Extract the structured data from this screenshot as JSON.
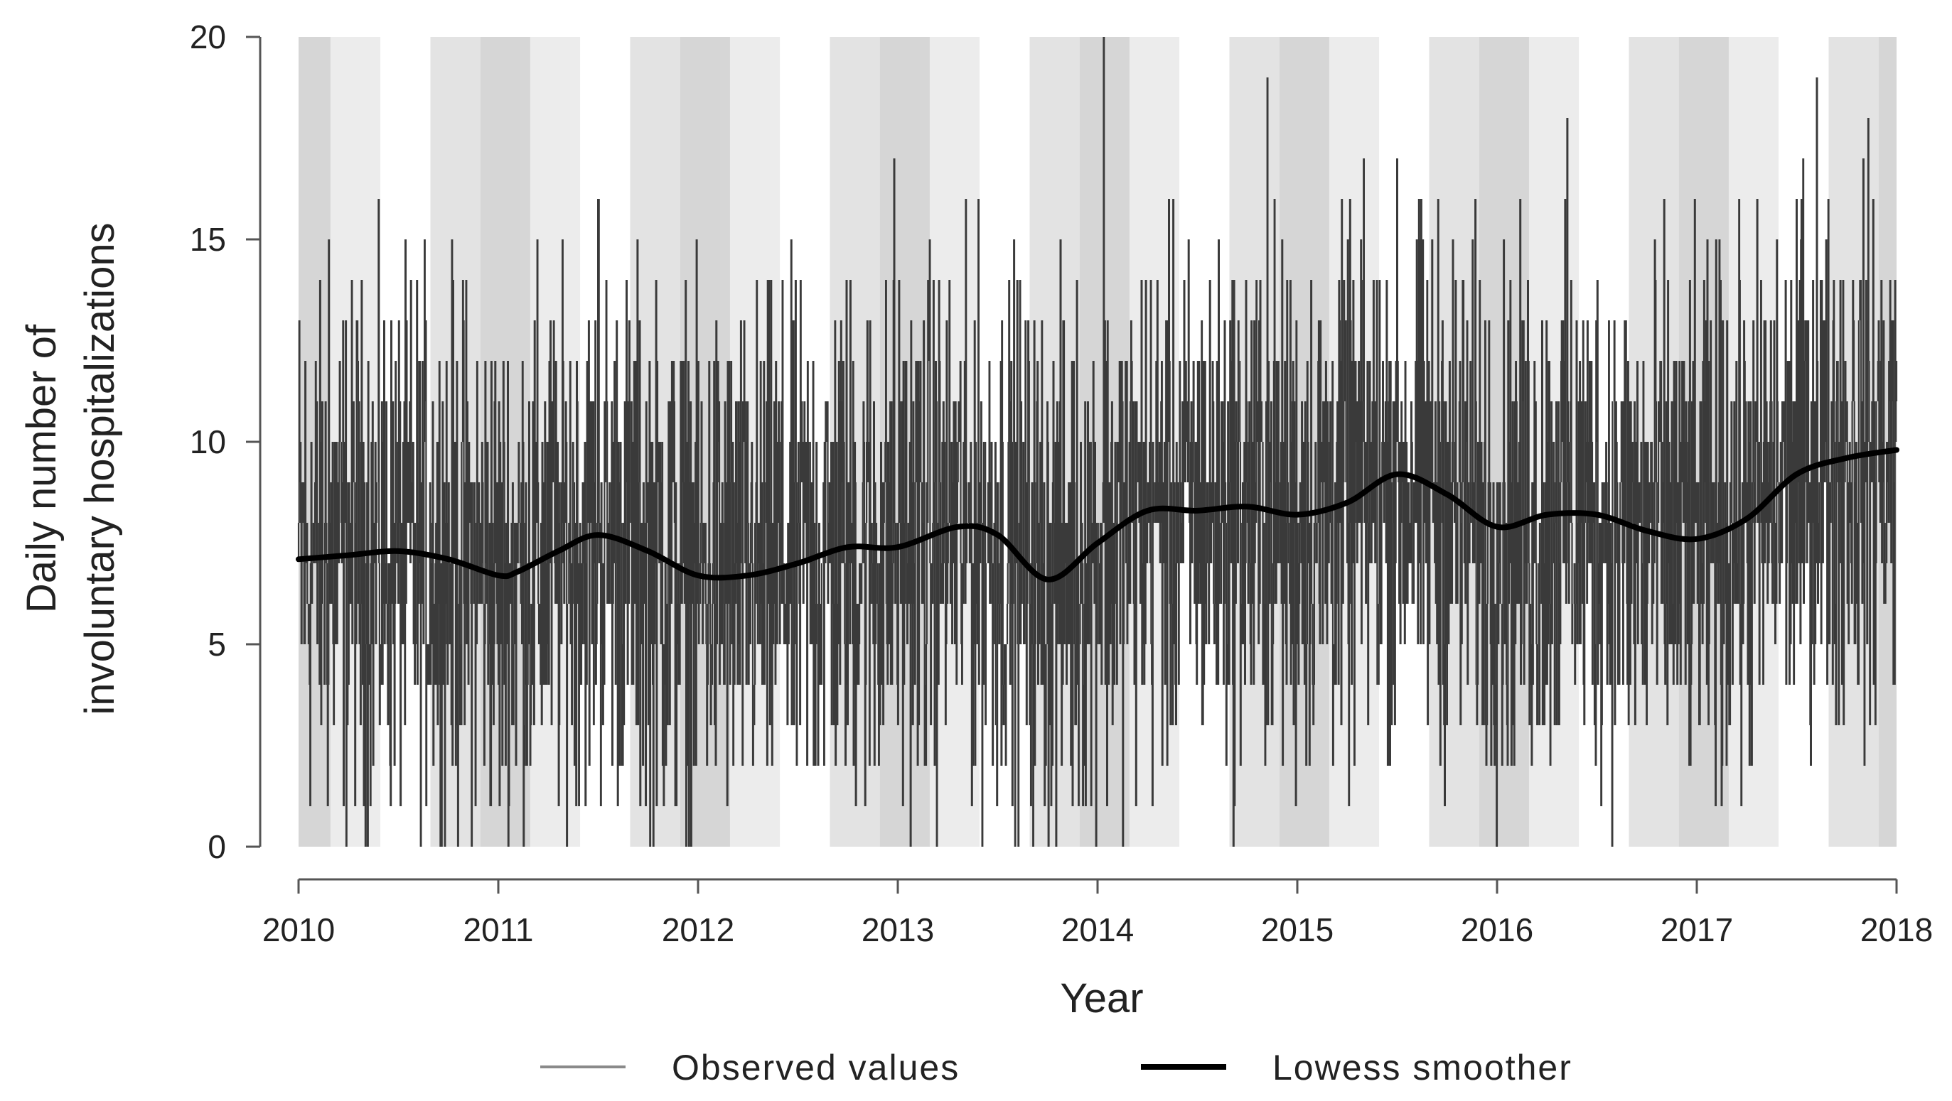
{
  "chart_data": {
    "type": "line",
    "title": "",
    "xlabel": "Year",
    "ylabel_lines": [
      "Daily number of",
      "involuntary hospitalizations"
    ],
    "xlim": [
      2010,
      2018
    ],
    "ylim": [
      0,
      20
    ],
    "x_ticks": [
      2010,
      2011,
      2012,
      2013,
      2014,
      2015,
      2016,
      2017,
      2018
    ],
    "y_ticks": [
      0,
      5,
      10,
      15,
      20
    ],
    "grid": false,
    "legend_position": "bottom",
    "season_shading": {
      "description": "Alternating seasonal background bands each year",
      "bands": [
        {
          "start": 0.0,
          "end": 0.16,
          "shade": "#d6d6d6"
        },
        {
          "start": 0.16,
          "end": 0.41,
          "shade": "#ececec"
        },
        {
          "start": 0.41,
          "end": 0.66,
          "shade": "#ffffff"
        },
        {
          "start": 0.66,
          "end": 0.91,
          "shade": "#e3e3e3"
        },
        {
          "start": 0.91,
          "end": 1.0,
          "shade": "#d6d6d6"
        }
      ]
    },
    "series": [
      {
        "name": "Observed values",
        "style": "thin gray vertical line segments (daily counts)",
        "approx_daily_range": [
          0,
          20
        ],
        "notable_peaks": [
          {
            "x": 2010.15,
            "y": 15
          },
          {
            "x": 2011.5,
            "y": 16
          },
          {
            "x": 2012.98,
            "y": 17
          },
          {
            "x": 2014.03,
            "y": 20
          },
          {
            "x": 2014.85,
            "y": 19
          },
          {
            "x": 2016.35,
            "y": 18
          },
          {
            "x": 2017.6,
            "y": 19
          }
        ]
      },
      {
        "name": "Lowess smoother",
        "style": "thick black line",
        "x": [
          2010.0,
          2010.25,
          2010.5,
          2010.75,
          2011.0,
          2011.1,
          2011.3,
          2011.5,
          2011.75,
          2012.0,
          2012.25,
          2012.5,
          2012.75,
          2013.0,
          2013.3,
          2013.5,
          2013.75,
          2014.0,
          2014.25,
          2014.5,
          2014.75,
          2015.0,
          2015.25,
          2015.5,
          2015.75,
          2016.0,
          2016.25,
          2016.5,
          2016.75,
          2017.0,
          2017.25,
          2017.5,
          2017.75,
          2018.0
        ],
        "y": [
          7.1,
          7.2,
          7.3,
          7.1,
          6.7,
          6.8,
          7.3,
          7.7,
          7.3,
          6.7,
          6.7,
          7.0,
          7.4,
          7.4,
          7.9,
          7.7,
          6.6,
          7.5,
          8.3,
          8.3,
          8.4,
          8.2,
          8.5,
          9.2,
          8.7,
          7.9,
          8.2,
          8.2,
          7.8,
          7.6,
          8.1,
          9.2,
          9.6,
          9.8
        ]
      }
    ]
  },
  "legend": {
    "observed_label": "Observed values",
    "lowess_label": "Lowess smoother"
  },
  "colors": {
    "observed": "#3a3a3a",
    "lowess": "#000000",
    "axis": "#555555"
  }
}
